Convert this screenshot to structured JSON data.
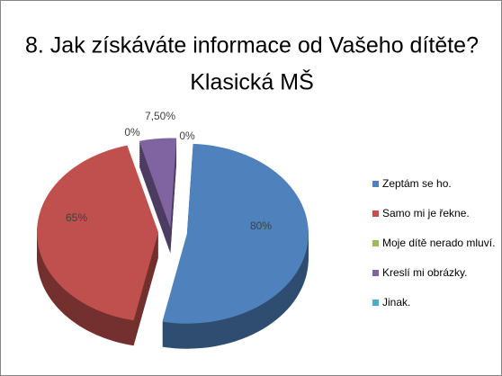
{
  "chart_data": {
    "type": "pie",
    "title": [
      "8. Jak získáváte informace od Vašeho dítěte?",
      "Klasická MŠ"
    ],
    "categories": [
      "Zeptám se ho.",
      "Samo mi je řekne.",
      "Moje dítě nerado mluví.",
      "Kreslí mi obrázky.",
      "Jinak."
    ],
    "values": [
      80,
      65,
      0,
      7.5,
      0
    ],
    "value_labels": [
      "80%",
      "65%",
      "0%",
      "7,50%",
      "0%"
    ],
    "colors": [
      "#4f81bd",
      "#c0504d",
      "#9bbb59",
      "#8064a2",
      "#4bacc6"
    ],
    "legend": "right"
  }
}
